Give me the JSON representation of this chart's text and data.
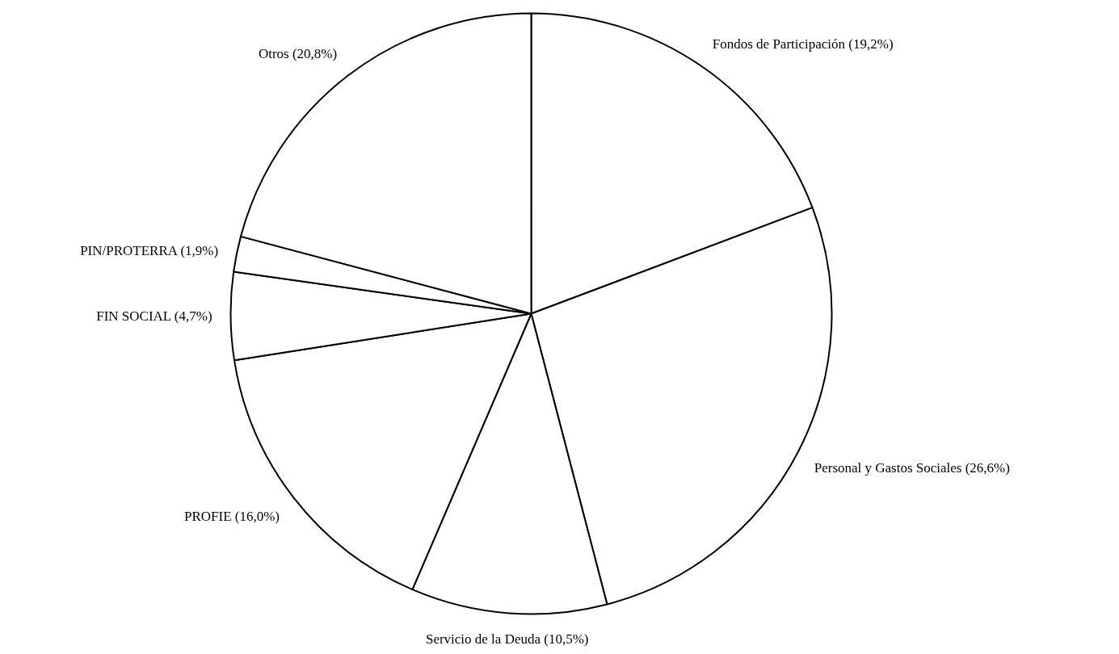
{
  "chart_data": {
    "type": "pie",
    "categories": [
      "Fondos de Participación (19,2%)",
      "Personal y Gastos Sociales (26,6%)",
      "Servicio de la Deuda (10,5%)",
      "PROFIE (16,0%)",
      "FIN SOCIAL (4,7%)",
      "PIN/PROTERRA (1,9%)",
      "Otros (20,8%)"
    ],
    "values": [
      19.2,
      26.6,
      10.5,
      16.0,
      4.7,
      1.9,
      20.8
    ],
    "colors": [
      "#ffffff",
      "#ffffff",
      "#ffffff",
      "#ffffff",
      "#ffffff",
      "#ffffff",
      "#ffffff"
    ]
  }
}
